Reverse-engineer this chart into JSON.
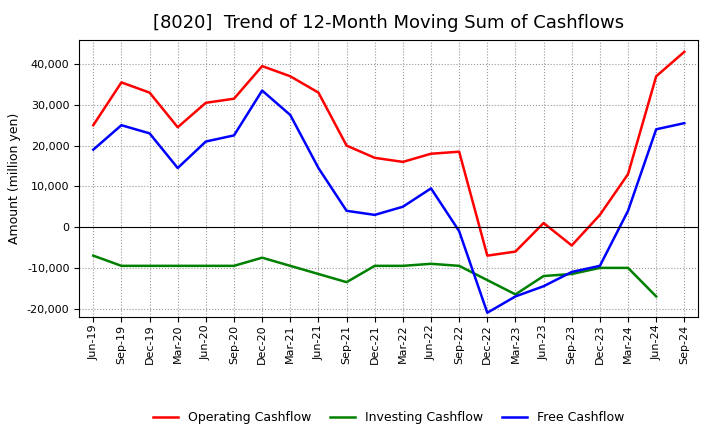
{
  "title": "[8020]  Trend of 12-Month Moving Sum of Cashflows",
  "ylabel": "Amount (million yen)",
  "ylim": [
    -22000,
    46000
  ],
  "yticks": [
    -20000,
    -10000,
    0,
    10000,
    20000,
    30000,
    40000
  ],
  "background_color": "#ffffff",
  "grid_color": "#999999",
  "labels": [
    "Jun-19",
    "Sep-19",
    "Dec-19",
    "Mar-20",
    "Jun-20",
    "Sep-20",
    "Dec-20",
    "Mar-21",
    "Jun-21",
    "Sep-21",
    "Dec-21",
    "Mar-22",
    "Jun-22",
    "Sep-22",
    "Dec-22",
    "Mar-23",
    "Jun-23",
    "Sep-23",
    "Dec-23",
    "Mar-24",
    "Jun-24",
    "Sep-24"
  ],
  "operating": [
    25000,
    35500,
    33000,
    24500,
    30500,
    31500,
    39500,
    37000,
    33000,
    20000,
    17000,
    16000,
    18000,
    18500,
    -7000,
    -6000,
    1000,
    -4500,
    3000,
    13000,
    37000,
    43000
  ],
  "investing": [
    -7000,
    -9500,
    -9500,
    -9500,
    -9500,
    -9500,
    -7500,
    -9500,
    -11500,
    -13500,
    -9500,
    -9500,
    -9000,
    -9500,
    -13000,
    -16500,
    -12000,
    -11500,
    -10000,
    -10000,
    -17000,
    null
  ],
  "free": [
    19000,
    25000,
    23000,
    14500,
    21000,
    22500,
    33500,
    27500,
    14500,
    4000,
    3000,
    5000,
    9500,
    -1000,
    -21000,
    -17000,
    -14500,
    -11000,
    -9500,
    4000,
    24000,
    25500
  ],
  "op_color": "#ff0000",
  "inv_color": "#008000",
  "free_color": "#0000ff",
  "line_width": 1.8,
  "title_fontsize": 13,
  "ylabel_fontsize": 9,
  "tick_fontsize": 8,
  "legend_fontsize": 9
}
